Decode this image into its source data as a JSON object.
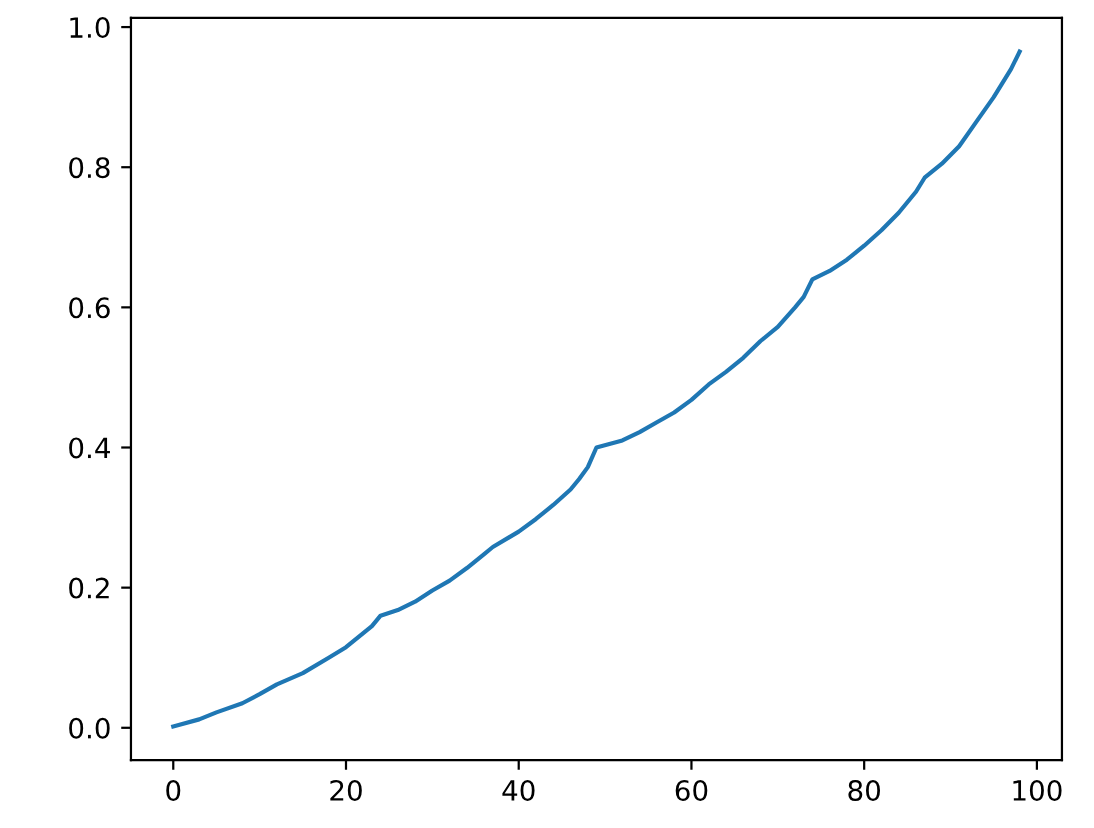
{
  "chart_data": {
    "type": "line",
    "x": [
      0,
      3,
      5,
      8,
      10,
      12,
      15,
      18,
      20,
      22,
      23,
      24,
      26,
      28,
      30,
      32,
      34,
      36,
      37,
      40,
      42,
      44,
      46,
      47,
      48,
      49,
      52,
      54,
      56,
      58,
      60,
      62,
      64,
      66,
      68,
      70,
      72,
      73,
      74,
      76,
      78,
      80,
      82,
      84,
      86,
      87,
      89,
      91,
      93,
      95,
      96,
      97,
      98
    ],
    "series": [
      {
        "color": "#1f77b4",
        "values": [
          0.002,
          0.012,
          0.022,
          0.035,
          0.048,
          0.062,
          0.078,
          0.1,
          0.115,
          0.135,
          0.145,
          0.16,
          0.168,
          0.18,
          0.196,
          0.21,
          0.228,
          0.248,
          0.258,
          0.28,
          0.298,
          0.318,
          0.34,
          0.355,
          0.372,
          0.4,
          0.41,
          0.422,
          0.436,
          0.45,
          0.468,
          0.49,
          0.508,
          0.528,
          0.552,
          0.572,
          0.6,
          0.615,
          0.64,
          0.652,
          0.668,
          0.688,
          0.71,
          0.735,
          0.765,
          0.785,
          0.805,
          0.83,
          0.865,
          0.9,
          0.92,
          0.94,
          0.965
        ]
      }
    ],
    "xlim": [
      -4.9,
      102.9
    ],
    "ylim": [
      -0.046,
      1.013
    ],
    "xticks": [
      0,
      20,
      40,
      60,
      80,
      100
    ],
    "yticks": [
      {
        "value": 0,
        "label": "0.0"
      },
      {
        "value": 0.2,
        "label": "0.2"
      },
      {
        "value": 0.4,
        "label": "0.4"
      },
      {
        "value": 0.6,
        "label": "0.6"
      },
      {
        "value": 0.8,
        "label": "0.8"
      },
      {
        "value": 1.0,
        "label": "1.0"
      }
    ],
    "grid": false
  }
}
